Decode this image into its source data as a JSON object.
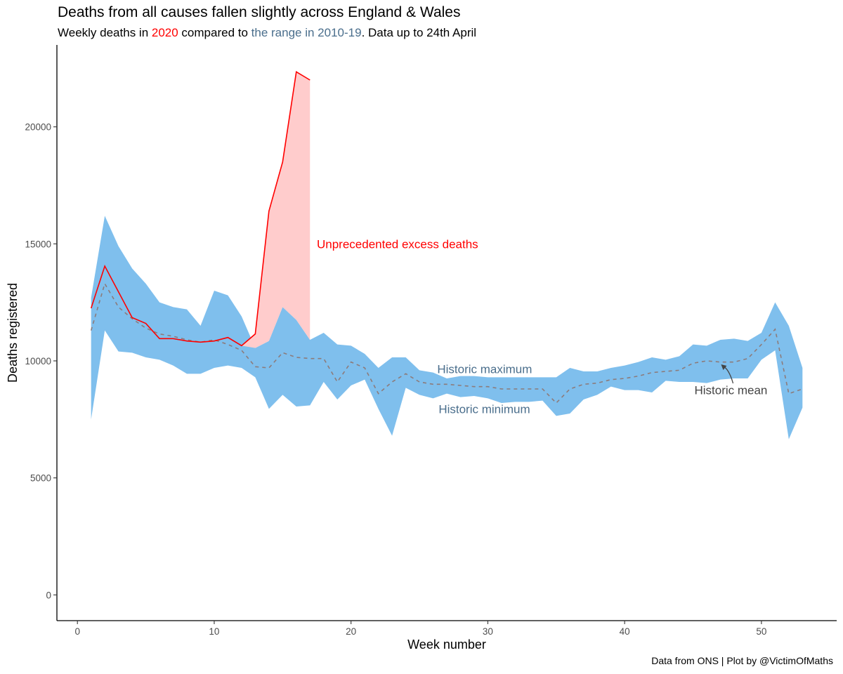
{
  "title": "Deaths from all causes fallen slightly across England & Wales",
  "subtitle": {
    "part1": "Weekly deaths in ",
    "highlight_year": "2020",
    "part2": " compared to ",
    "highlight_range": "the range in 2010-19",
    "part3": ". Data up to 24th April"
  },
  "caption": "Data from ONS | Plot by @VictimOfMaths",
  "colors": {
    "line_2020": "#ff0000",
    "excess_fill": "#ffcccc",
    "range_fill": "#7fbfed",
    "mean_line": "#8c7b7b",
    "range_text": "#4a6e8c",
    "annotation_mean": "#444444"
  },
  "chart_data": {
    "type": "area",
    "xlabel": "Week number",
    "ylabel": "Deaths registered",
    "xlim": [
      -1.5,
      55.5
    ],
    "ylim": [
      -1100,
      23500
    ],
    "xticks": [
      0,
      10,
      20,
      30,
      40,
      50
    ],
    "yticks": [
      0,
      5000,
      10000,
      15000,
      20000
    ],
    "grid": false,
    "legend": "none",
    "series": [
      {
        "name": "Historic maximum",
        "x": [
          1,
          2,
          3,
          4,
          5,
          6,
          7,
          8,
          9,
          10,
          11,
          12,
          13,
          14,
          15,
          16,
          17,
          18,
          19,
          20,
          21,
          22,
          23,
          24,
          25,
          26,
          27,
          28,
          29,
          30,
          31,
          32,
          33,
          34,
          35,
          36,
          37,
          38,
          39,
          40,
          41,
          42,
          43,
          44,
          45,
          46,
          47,
          48,
          49,
          50,
          51,
          52,
          53
        ],
        "values": [
          12700,
          16200,
          14900,
          13950,
          13300,
          12500,
          12300,
          12200,
          11500,
          13000,
          12800,
          11900,
          10550,
          10850,
          12300,
          11750,
          10900,
          11200,
          10700,
          10650,
          10300,
          9700,
          10150,
          10150,
          9600,
          9500,
          9250,
          9350,
          9350,
          9300,
          9300,
          9300,
          9300,
          9300,
          9300,
          9700,
          9550,
          9550,
          9700,
          9800,
          9950,
          10150,
          10050,
          10200,
          10700,
          10650,
          10900,
          10950,
          10850,
          11200,
          12500,
          11500,
          9700
        ]
      },
      {
        "name": "Historic minimum",
        "x": [
          1,
          2,
          3,
          4,
          5,
          6,
          7,
          8,
          9,
          10,
          11,
          12,
          13,
          14,
          15,
          16,
          17,
          18,
          19,
          20,
          21,
          22,
          23,
          24,
          25,
          26,
          27,
          28,
          29,
          30,
          31,
          32,
          33,
          34,
          35,
          36,
          37,
          38,
          39,
          40,
          41,
          42,
          43,
          44,
          45,
          46,
          47,
          48,
          49,
          50,
          51,
          52,
          53
        ],
        "values": [
          7500,
          11300,
          10400,
          10350,
          10150,
          10050,
          9800,
          9450,
          9450,
          9700,
          9800,
          9700,
          9300,
          7950,
          8550,
          8050,
          8100,
          9100,
          8350,
          8950,
          9200,
          7950,
          6800,
          8850,
          8550,
          8400,
          8600,
          8450,
          8500,
          8400,
          8200,
          8250,
          8250,
          8300,
          7650,
          7750,
          8350,
          8550,
          8900,
          8750,
          8750,
          8650,
          9150,
          9100,
          9100,
          9050,
          9200,
          9250,
          9250,
          10050,
          10450,
          6650,
          8000
        ]
      },
      {
        "name": "Historic mean",
        "x": [
          1,
          2,
          3,
          4,
          5,
          6,
          7,
          8,
          9,
          10,
          11,
          12,
          13,
          14,
          15,
          16,
          17,
          18,
          19,
          20,
          21,
          22,
          23,
          24,
          25,
          26,
          27,
          28,
          29,
          30,
          31,
          32,
          33,
          34,
          35,
          36,
          37,
          38,
          39,
          40,
          41,
          42,
          43,
          44,
          45,
          46,
          47,
          48,
          49,
          50,
          51,
          52,
          53
        ],
        "values": [
          11300,
          13300,
          12300,
          11800,
          11400,
          11150,
          11050,
          10900,
          10800,
          10900,
          10700,
          10450,
          9750,
          9700,
          10350,
          10150,
          10100,
          10100,
          9100,
          9950,
          9700,
          8600,
          9100,
          9450,
          9100,
          9000,
          9000,
          8950,
          8900,
          8900,
          8800,
          8800,
          8800,
          8800,
          8200,
          8800,
          9000,
          9050,
          9200,
          9250,
          9350,
          9500,
          9550,
          9600,
          9900,
          10000,
          9950,
          9950,
          10100,
          10700,
          11350,
          8600,
          8800
        ]
      },
      {
        "name": "2020",
        "x": [
          1,
          2,
          3,
          4,
          5,
          6,
          7,
          8,
          9,
          10,
          11,
          12,
          13,
          14,
          15,
          16,
          17
        ],
        "values": [
          12250,
          14050,
          12950,
          11850,
          11600,
          10950,
          10950,
          10850,
          10800,
          10850,
          11000,
          10650,
          11150,
          16400,
          18500,
          22350,
          22000
        ]
      }
    ],
    "annotations": [
      {
        "text": "Unprecedented excess deaths",
        "x": 17.5,
        "y": 15000,
        "color": "#ff0000"
      },
      {
        "text": "Historic maximum",
        "x": 26.3,
        "y": 9650,
        "color": "#4a6e8c"
      },
      {
        "text": "Historic minimum",
        "x": 26.4,
        "y": 7950,
        "color": "#4a6e8c"
      },
      {
        "text": "Historic mean",
        "x": 45.1,
        "y": 8750,
        "color": "#444444"
      }
    ]
  }
}
